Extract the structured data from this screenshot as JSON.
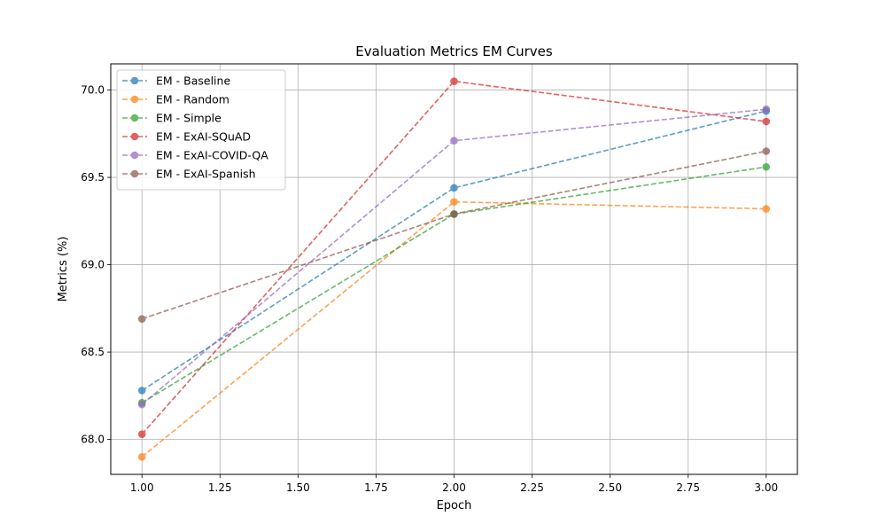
{
  "chart_data": {
    "type": "line",
    "title": "Evaluation Metrics EM Curves",
    "xlabel": "Epoch",
    "ylabel": "Metrics (%)",
    "xlim": [
      0.9,
      3.1
    ],
    "ylim": [
      67.8,
      70.15
    ],
    "x_ticks": [
      1.0,
      1.25,
      1.5,
      1.75,
      2.0,
      2.25,
      2.5,
      2.75,
      3.0
    ],
    "x_tick_labels": [
      "1.00",
      "1.25",
      "1.50",
      "1.75",
      "2.00",
      "2.25",
      "2.50",
      "2.75",
      "3.00"
    ],
    "y_ticks": [
      68.0,
      68.5,
      69.0,
      69.5,
      70.0
    ],
    "y_tick_labels": [
      "68.0",
      "68.5",
      "69.0",
      "69.5",
      "70.0"
    ],
    "grid": true,
    "legend_position": "top-left",
    "line_style": "dashed",
    "marker": "circle",
    "x": [
      1,
      2,
      3
    ],
    "series": [
      {
        "name": "EM - Baseline",
        "color": "#1f77b4",
        "values": [
          68.28,
          69.44,
          69.88
        ]
      },
      {
        "name": "EM - Random",
        "color": "#ff7f0e",
        "values": [
          67.9,
          69.36,
          69.32
        ]
      },
      {
        "name": "EM - Simple",
        "color": "#2ca02c",
        "values": [
          68.21,
          69.29,
          69.56
        ]
      },
      {
        "name": "EM - ExAI-SQuAD",
        "color": "#d62728",
        "values": [
          68.03,
          70.05,
          69.82
        ]
      },
      {
        "name": "EM - ExAI-COVID-QA",
        "color": "#9467bd",
        "values": [
          68.2,
          69.71,
          69.89
        ]
      },
      {
        "name": "EM - ExAI-Spanish",
        "color": "#8c564b",
        "values": [
          68.69,
          69.29,
          69.65
        ]
      }
    ]
  }
}
